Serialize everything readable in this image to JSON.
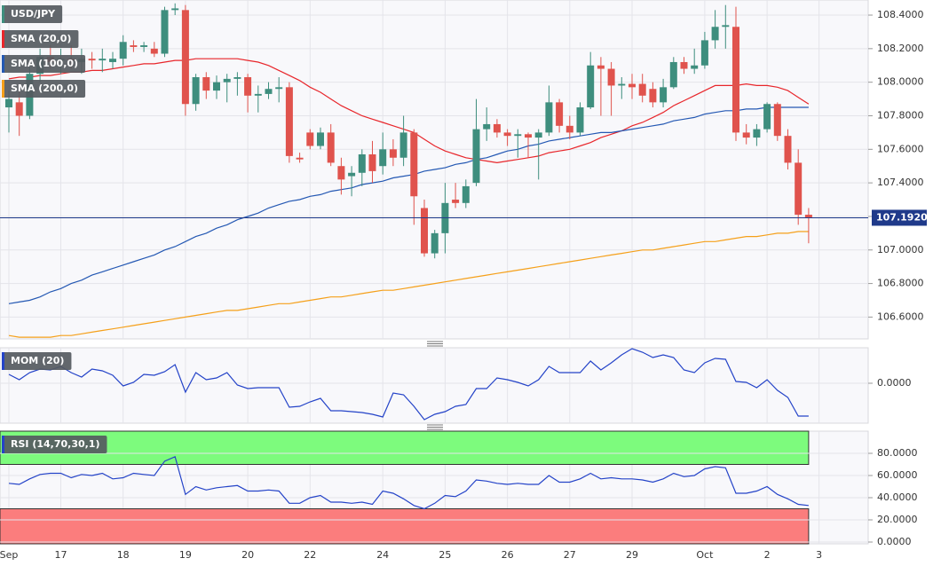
{
  "chart_data": [
    {
      "type": "candlestick",
      "title": "USD/JPY",
      "categories": [
        "Sep",
        null,
        null,
        null,
        null,
        "17",
        null,
        null,
        null,
        null,
        null,
        "18",
        null,
        null,
        null,
        null,
        null,
        "19",
        null,
        null,
        null,
        null,
        null,
        "20",
        null,
        null,
        null,
        null,
        null,
        "22",
        null,
        null,
        null,
        null,
        null,
        null,
        "24",
        null,
        null,
        null,
        null,
        null,
        "25",
        null,
        null,
        null,
        null,
        null,
        "26",
        null,
        null,
        null,
        null,
        null,
        "27",
        null,
        null,
        null,
        null,
        null,
        "29",
        null,
        null,
        null,
        null,
        null,
        null,
        "Oct",
        null,
        null,
        null,
        null,
        null,
        "2",
        null,
        null,
        null,
        null,
        "3"
      ],
      "open": [
        107.85,
        107.88,
        107.8,
        108.05,
        108.15,
        108.13,
        108.14,
        108.12,
        108.14,
        108.13,
        108.12,
        108.14,
        108.22,
        108.21,
        108.2,
        108.17,
        108.43,
        108.43,
        107.87,
        108.03,
        107.95,
        108.0,
        108.02,
        108.03,
        107.92,
        107.93,
        107.96,
        107.97,
        107.55,
        107.7,
        107.62,
        107.7,
        107.5,
        107.44,
        107.46,
        107.57,
        107.5,
        107.6,
        107.55,
        107.7,
        107.25,
        106.98,
        107.1,
        107.3,
        107.28,
        107.4,
        107.72,
        107.75,
        107.7,
        107.68,
        107.69,
        107.67,
        107.7,
        107.88,
        107.74,
        107.7,
        107.85,
        108.1,
        108.08,
        107.98,
        107.99,
        107.99,
        107.96,
        107.88,
        107.97,
        108.12,
        108.08,
        108.1,
        108.25,
        108.33,
        108.33,
        107.7,
        107.67,
        107.72,
        107.87,
        107.68,
        107.52,
        107.21,
        null
      ],
      "high": [
        107.95,
        107.95,
        108.1,
        108.2,
        108.22,
        108.2,
        108.22,
        108.2,
        108.18,
        108.2,
        108.18,
        108.28,
        108.25,
        108.24,
        108.24,
        108.45,
        108.47,
        108.46,
        108.05,
        108.06,
        108.04,
        108.05,
        108.06,
        108.05,
        107.98,
        108.0,
        108.03,
        108.0,
        107.58,
        107.72,
        107.73,
        107.75,
        107.55,
        107.5,
        107.6,
        107.65,
        107.7,
        107.66,
        107.8,
        107.72,
        107.3,
        107.12,
        107.4,
        107.4,
        107.42,
        107.9,
        107.85,
        107.78,
        107.72,
        107.72,
        107.7,
        107.72,
        107.98,
        107.9,
        107.8,
        107.88,
        108.18,
        108.15,
        108.12,
        108.03,
        108.05,
        108.05,
        108.0,
        108.02,
        108.15,
        108.15,
        108.2,
        108.3,
        108.43,
        108.46,
        108.45,
        107.75,
        107.75,
        107.88,
        107.88,
        107.72,
        107.6,
        107.25,
        null
      ],
      "low": [
        107.7,
        107.68,
        107.78,
        108.0,
        108.08,
        108.05,
        108.08,
        108.05,
        108.08,
        108.06,
        108.08,
        108.1,
        108.18,
        108.18,
        108.15,
        108.15,
        108.4,
        107.8,
        107.83,
        107.9,
        107.9,
        107.88,
        107.92,
        107.82,
        107.82,
        107.9,
        107.88,
        107.52,
        107.52,
        107.6,
        107.6,
        107.5,
        107.33,
        107.32,
        107.38,
        107.4,
        107.45,
        107.5,
        107.5,
        107.15,
        106.96,
        106.95,
        106.98,
        107.25,
        107.25,
        107.38,
        107.65,
        107.67,
        107.62,
        107.55,
        107.55,
        107.42,
        107.68,
        107.7,
        107.66,
        107.68,
        107.84,
        107.8,
        107.8,
        107.9,
        107.9,
        107.88,
        107.85,
        107.85,
        107.96,
        108.05,
        108.05,
        108.08,
        108.2,
        108.2,
        107.65,
        107.63,
        107.62,
        107.7,
        107.65,
        107.48,
        107.15,
        107.04,
        null
      ],
      "close": [
        107.9,
        107.8,
        108.05,
        108.15,
        108.12,
        108.14,
        108.13,
        108.14,
        108.13,
        108.14,
        108.14,
        108.24,
        108.21,
        108.22,
        108.17,
        108.43,
        108.44,
        107.87,
        108.03,
        107.95,
        108.0,
        108.02,
        108.03,
        107.92,
        107.93,
        107.96,
        107.97,
        107.56,
        107.54,
        107.62,
        107.7,
        107.52,
        107.42,
        107.46,
        107.57,
        107.47,
        107.6,
        107.55,
        107.7,
        107.32,
        106.98,
        107.1,
        107.28,
        107.28,
        107.38,
        107.72,
        107.75,
        107.7,
        107.68,
        107.69,
        107.67,
        107.7,
        107.88,
        107.74,
        107.7,
        107.85,
        108.1,
        108.08,
        107.98,
        107.99,
        107.97,
        107.92,
        107.88,
        107.97,
        108.12,
        108.08,
        108.1,
        108.25,
        108.33,
        108.34,
        107.7,
        107.67,
        107.72,
        107.87,
        107.68,
        107.52,
        107.21,
        107.192,
        null
      ],
      "up_color": "#3e8e7e",
      "down_color": "#e0534d",
      "series": [
        {
          "name": "SMA (20,0)",
          "color": "#e8262b",
          "values": [
            108.02,
            108.03,
            108.03,
            108.04,
            108.04,
            108.05,
            108.06,
            108.06,
            108.07,
            108.07,
            108.08,
            108.09,
            108.1,
            108.11,
            108.11,
            108.12,
            108.13,
            108.13,
            108.14,
            108.14,
            108.14,
            108.14,
            108.14,
            108.13,
            108.12,
            108.1,
            108.07,
            108.04,
            108.01,
            107.97,
            107.94,
            107.9,
            107.86,
            107.83,
            107.8,
            107.78,
            107.76,
            107.74,
            107.72,
            107.7,
            107.66,
            107.62,
            107.59,
            107.57,
            107.55,
            107.54,
            107.53,
            107.52,
            107.53,
            107.54,
            107.55,
            107.56,
            107.58,
            107.59,
            107.6,
            107.62,
            107.64,
            107.67,
            107.69,
            107.71,
            107.74,
            107.76,
            107.79,
            107.82,
            107.86,
            107.89,
            107.92,
            107.95,
            107.98,
            107.98,
            107.98,
            107.99,
            107.98,
            107.98,
            107.97,
            107.95,
            107.91,
            107.87,
            null
          ]
        },
        {
          "name": "SMA (100,0)",
          "color": "#2458b3",
          "values": [
            106.68,
            106.69,
            106.7,
            106.72,
            106.75,
            106.77,
            106.8,
            106.82,
            106.85,
            106.87,
            106.89,
            106.91,
            106.93,
            106.95,
            106.97,
            107.0,
            107.02,
            107.05,
            107.08,
            107.1,
            107.13,
            107.15,
            107.18,
            107.2,
            107.22,
            107.25,
            107.27,
            107.29,
            107.3,
            107.32,
            107.33,
            107.35,
            107.36,
            107.37,
            107.39,
            107.4,
            107.41,
            107.43,
            107.44,
            107.45,
            107.47,
            107.48,
            107.49,
            107.51,
            107.52,
            107.54,
            107.55,
            107.57,
            107.59,
            107.6,
            107.62,
            107.63,
            107.65,
            107.66,
            107.67,
            107.68,
            107.69,
            107.7,
            107.7,
            107.71,
            107.72,
            107.73,
            107.74,
            107.75,
            107.77,
            107.78,
            107.79,
            107.81,
            107.82,
            107.83,
            107.83,
            107.84,
            107.84,
            107.85,
            107.85,
            107.85,
            107.85,
            107.85,
            null
          ]
        },
        {
          "name": "SMA (200,0)",
          "color": "#f5a01a",
          "values": [
            106.49,
            106.48,
            106.48,
            106.48,
            106.48,
            106.49,
            106.49,
            106.5,
            106.51,
            106.52,
            106.53,
            106.54,
            106.55,
            106.56,
            106.57,
            106.58,
            106.59,
            106.6,
            106.61,
            106.62,
            106.63,
            106.64,
            106.64,
            106.65,
            106.66,
            106.67,
            106.68,
            106.68,
            106.69,
            106.7,
            106.71,
            106.72,
            106.72,
            106.73,
            106.74,
            106.75,
            106.76,
            106.76,
            106.77,
            106.78,
            106.79,
            106.8,
            106.81,
            106.82,
            106.83,
            106.84,
            106.85,
            106.86,
            106.87,
            106.88,
            106.89,
            106.9,
            106.91,
            106.92,
            106.93,
            106.94,
            106.95,
            106.96,
            106.97,
            106.98,
            106.99,
            107.0,
            107.0,
            107.01,
            107.02,
            107.03,
            107.04,
            107.05,
            107.05,
            107.06,
            107.07,
            107.08,
            107.08,
            107.09,
            107.1,
            107.1,
            107.11,
            107.11,
            null
          ]
        }
      ],
      "ylim": [
        106.47,
        108.49
      ],
      "yticks": [
        {
          "value": 108.4,
          "label": "108.4000"
        },
        {
          "value": 108.2,
          "label": "108.2000"
        },
        {
          "value": 108.0,
          "label": "108.0000"
        },
        {
          "value": 107.8,
          "label": "107.8000"
        },
        {
          "value": 107.6,
          "label": "107.6000"
        },
        {
          "value": 107.4,
          "label": "107.4000"
        },
        {
          "value": 107.2,
          "label": "107.2000"
        },
        {
          "value": 107.0,
          "label": "107.0000"
        },
        {
          "value": 106.8,
          "label": "106.8000"
        },
        {
          "value": 106.6,
          "label": "106.6000"
        }
      ],
      "last_price": {
        "value": 107.192,
        "label": "107.1920"
      },
      "last_price_color": "#1f3a8a",
      "grid": true
    },
    {
      "type": "line",
      "title": "MOM (20)",
      "color": "#2443c8",
      "values": [
        0.2,
        0.08,
        0.24,
        0.32,
        0.3,
        0.38,
        0.24,
        0.14,
        0.32,
        0.28,
        0.18,
        -0.06,
        0.02,
        0.2,
        0.18,
        0.26,
        0.42,
        -0.2,
        0.24,
        0.08,
        0.12,
        0.24,
        -0.04,
        -0.12,
        -0.1,
        -0.1,
        -0.1,
        -0.54,
        -0.52,
        -0.42,
        -0.34,
        -0.62,
        -0.62,
        -0.64,
        -0.66,
        -0.7,
        -0.76,
        -0.22,
        -0.26,
        -0.52,
        -0.82,
        -0.7,
        -0.64,
        -0.52,
        -0.48,
        -0.12,
        -0.12,
        0.12,
        0.08,
        0.02,
        -0.06,
        0.08,
        0.38,
        0.24,
        0.24,
        0.24,
        0.5,
        0.3,
        0.46,
        0.64,
        0.78,
        0.7,
        0.58,
        0.64,
        0.58,
        0.3,
        0.24,
        0.46,
        0.56,
        0.54,
        0.04,
        0.02,
        -0.1,
        0.08,
        -0.16,
        -0.32,
        -0.74,
        -0.74,
        null
      ],
      "ylim": [
        -0.9,
        0.8
      ],
      "yticks": [
        {
          "value": 0,
          "label": "0.0000"
        }
      ],
      "grid": true
    },
    {
      "type": "line",
      "title": "RSI (14,70,30,1)",
      "color": "#2443c8",
      "values": [
        53,
        52,
        57,
        61,
        62,
        62,
        58,
        61,
        60,
        62,
        57,
        58,
        62,
        61,
        60,
        73,
        77,
        43,
        50,
        47,
        49,
        50,
        51,
        46,
        46,
        47,
        46,
        35,
        35,
        40,
        42,
        36,
        36,
        35,
        36,
        34,
        46,
        44,
        39,
        33,
        30,
        35,
        42,
        41,
        46,
        56,
        55,
        53,
        52,
        53,
        52,
        52,
        60,
        54,
        54,
        57,
        62,
        57,
        58,
        57,
        57,
        56,
        54,
        57,
        62,
        59,
        60,
        66,
        68,
        67,
        44,
        44,
        46,
        50,
        43,
        39,
        34,
        33,
        null
      ],
      "overbought": 70,
      "oversold": 30,
      "overbought_color": "#7dfb7d",
      "oversold_color": "#fb7d7d",
      "ylim": [
        -1.6,
        100
      ],
      "yticks": [
        {
          "value": 80,
          "label": "80.0000"
        },
        {
          "value": 60,
          "label": "60.0000"
        },
        {
          "value": 40,
          "label": "40.0000"
        },
        {
          "value": 20,
          "label": "20.0000"
        },
        {
          "value": 0,
          "label": "0.0000"
        }
      ],
      "grid": true
    }
  ]
}
